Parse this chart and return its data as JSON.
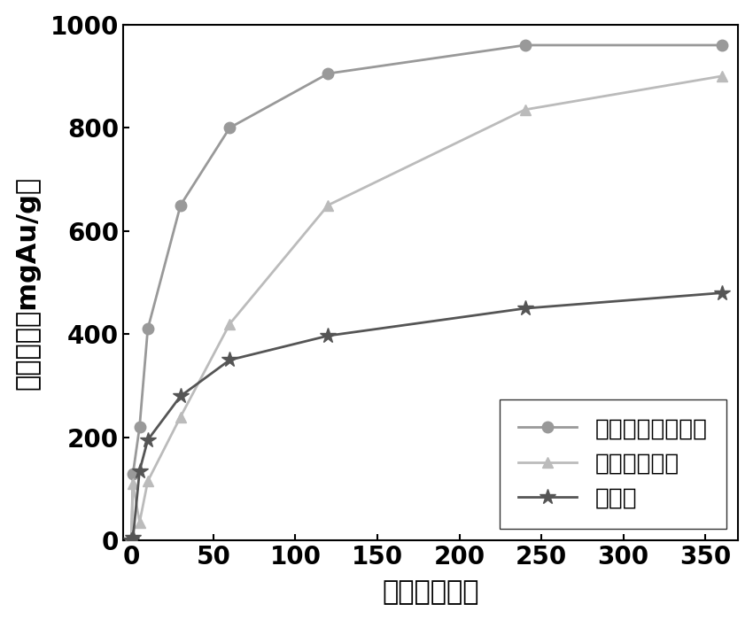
{
  "series": [
    {
      "label": "改性聚合物吸附剂",
      "x": [
        0,
        1,
        5,
        10,
        30,
        60,
        120,
        240,
        360
      ],
      "y": [
        0,
        130,
        220,
        410,
        650,
        800,
        905,
        960,
        960
      ],
      "color": "#999999",
      "marker": "o",
      "linewidth": 2.0,
      "markersize": 9
    },
    {
      "label": "聚合物吸附剂",
      "x": [
        0,
        1,
        5,
        10,
        30,
        60,
        120,
        240,
        360
      ],
      "y": [
        0,
        110,
        35,
        115,
        240,
        420,
        650,
        835,
        900
      ],
      "color": "#bbbbbb",
      "marker": "^",
      "linewidth": 2.0,
      "markersize": 9
    },
    {
      "label": "活性炭",
      "x": [
        0,
        1,
        5,
        10,
        30,
        60,
        120,
        240,
        360
      ],
      "y": [
        0,
        5,
        135,
        195,
        280,
        350,
        397,
        450,
        480
      ],
      "color": "#555555",
      "marker": "*",
      "linewidth": 2.0,
      "markersize": 13
    }
  ],
  "xlabel": "时间（分钟）",
  "ylabel": "吸附容量（mgAu/g）",
  "xlim": [
    -5,
    370
  ],
  "ylim": [
    0,
    1000
  ],
  "xticks": [
    0,
    50,
    100,
    150,
    200,
    250,
    300,
    350
  ],
  "yticks": [
    0,
    200,
    400,
    600,
    800,
    1000
  ],
  "legend_loc": "lower right",
  "font_size_label": 22,
  "font_size_tick": 20,
  "font_size_legend": 19,
  "background_color": "#ffffff",
  "figsize": [
    8.5,
    7.0
  ],
  "dpi": 100,
  "spine_linewidth": 1.5
}
